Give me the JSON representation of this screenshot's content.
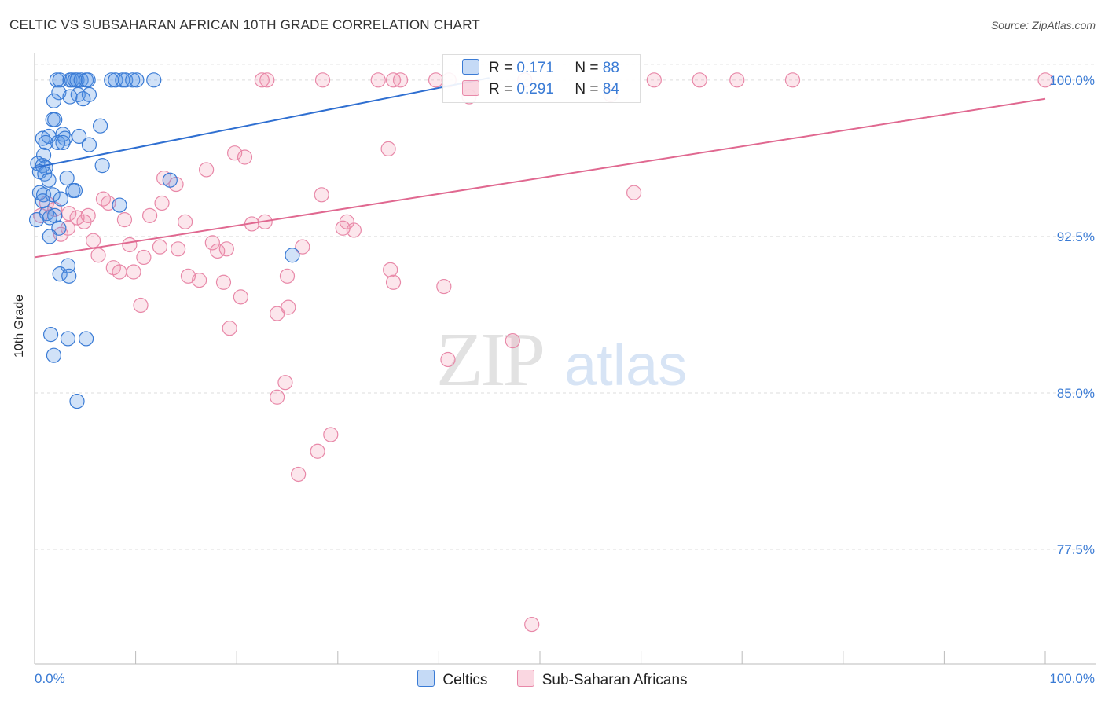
{
  "title": "CELTIC VS SUBSAHARAN AFRICAN 10TH GRADE CORRELATION CHART",
  "source": "Source: ZipAtlas.com",
  "watermark": {
    "zip": "ZIP",
    "atlas": "atlas"
  },
  "legend": {
    "r_label": "R = ",
    "n_label": "N = ",
    "series": [
      {
        "r": "0.171",
        "n": "88"
      },
      {
        "r": "0.291",
        "n": "84"
      }
    ]
  },
  "bottom_legend": [
    "Celtics",
    "Sub-Saharan Africans"
  ],
  "colors": {
    "blue_fill": "rgba(90,150,230,0.28)",
    "blue_stroke": "#3a7bd5",
    "blue_line": "#2f6fd1",
    "pink_fill": "rgba(240,140,170,0.22)",
    "pink_stroke": "#e888a8",
    "pink_line": "#e06890",
    "value_text": "#3a7bd5",
    "grid": "#dddddd"
  },
  "chart_data": {
    "type": "scatter",
    "xlabel": "",
    "ylabel": "10th Grade",
    "xlim": [
      0,
      100
    ],
    "ylim": [
      72,
      101.5
    ],
    "x_tick_labels": [
      "0.0%",
      "100.0%"
    ],
    "y_ticks": [
      77.5,
      85.0,
      92.5,
      100.0
    ],
    "y_tick_labels": [
      "77.5%",
      "85.0%",
      "92.5%",
      "100.0%"
    ],
    "grid": true,
    "legend_position": "top-center",
    "series": [
      {
        "name": "Celtics",
        "color": "#5a96e6",
        "trend": {
          "x": [
            0,
            45
          ],
          "y": [
            95.8,
            100.1
          ]
        },
        "points": [
          [
            2.2,
            100
          ],
          [
            2.5,
            100
          ],
          [
            3.5,
            100
          ],
          [
            3.7,
            100
          ],
          [
            4.0,
            100
          ],
          [
            4.2,
            100
          ],
          [
            4.6,
            100
          ],
          [
            5.1,
            100
          ],
          [
            5.3,
            100
          ],
          [
            7.6,
            100
          ],
          [
            8.0,
            100
          ],
          [
            8.7,
            100
          ],
          [
            9.0,
            100
          ],
          [
            9.7,
            100
          ],
          [
            10.1,
            100
          ],
          [
            11.8,
            100
          ],
          [
            4.3,
            99.3
          ],
          [
            2.4,
            99.4
          ],
          [
            5.4,
            99.3
          ],
          [
            3.5,
            99.2
          ],
          [
            1.9,
            99.0
          ],
          [
            4.8,
            99.1
          ],
          [
            1.8,
            98.1
          ],
          [
            2.0,
            98.1
          ],
          [
            6.5,
            97.8
          ],
          [
            2.8,
            97.4
          ],
          [
            3.0,
            97.2
          ],
          [
            4.4,
            97.3
          ],
          [
            0.8,
            97.2
          ],
          [
            1.4,
            97.3
          ],
          [
            2.3,
            97.0
          ],
          [
            1.1,
            97.0
          ],
          [
            2.8,
            97.0
          ],
          [
            5.4,
            96.9
          ],
          [
            0.9,
            96.4
          ],
          [
            0.3,
            96.0
          ],
          [
            0.8,
            95.9
          ],
          [
            1.1,
            95.8
          ],
          [
            0.5,
            95.6
          ],
          [
            1.0,
            95.5
          ],
          [
            6.7,
            95.9
          ],
          [
            3.2,
            95.3
          ],
          [
            1.4,
            95.2
          ],
          [
            0.5,
            94.6
          ],
          [
            0.9,
            94.5
          ],
          [
            1.8,
            94.5
          ],
          [
            3.8,
            94.7
          ],
          [
            4.0,
            94.7
          ],
          [
            13.4,
            95.2
          ],
          [
            0.8,
            94.2
          ],
          [
            2.6,
            94.3
          ],
          [
            8.4,
            94.0
          ],
          [
            1.2,
            93.6
          ],
          [
            2.0,
            93.5
          ],
          [
            1.5,
            93.4
          ],
          [
            2.4,
            92.9
          ],
          [
            1.5,
            92.5
          ],
          [
            25.5,
            91.6
          ],
          [
            3.3,
            91.1
          ],
          [
            2.5,
            90.7
          ],
          [
            3.4,
            90.6
          ],
          [
            1.6,
            87.8
          ],
          [
            3.3,
            87.6
          ],
          [
            5.1,
            87.6
          ],
          [
            1.9,
            86.8
          ],
          [
            4.2,
            84.6
          ],
          [
            0.2,
            93.3
          ]
        ]
      },
      {
        "name": "Sub-Saharan Africans",
        "color": "#f08cab",
        "trend": {
          "x": [
            0,
            100
          ],
          "y": [
            91.5,
            99.1
          ]
        },
        "points": [
          [
            22.5,
            100
          ],
          [
            23.0,
            100
          ],
          [
            28.5,
            100
          ],
          [
            34.0,
            100
          ],
          [
            35.5,
            100
          ],
          [
            36.2,
            100
          ],
          [
            39.7,
            100
          ],
          [
            41.0,
            100
          ],
          [
            48.5,
            100
          ],
          [
            61.3,
            100
          ],
          [
            65.8,
            100
          ],
          [
            69.5,
            100
          ],
          [
            75.0,
            100
          ],
          [
            100,
            100
          ],
          [
            43.0,
            99.2
          ],
          [
            57.0,
            99.3
          ],
          [
            35.0,
            96.7
          ],
          [
            19.8,
            96.5
          ],
          [
            20.8,
            96.3
          ],
          [
            17.0,
            95.7
          ],
          [
            12.8,
            95.3
          ],
          [
            14.0,
            95.0
          ],
          [
            28.4,
            94.5
          ],
          [
            59.3,
            94.6
          ],
          [
            6.8,
            94.3
          ],
          [
            7.3,
            94.1
          ],
          [
            12.6,
            94.1
          ],
          [
            1.2,
            94.1
          ],
          [
            2.0,
            93.8
          ],
          [
            3.4,
            93.6
          ],
          [
            5.3,
            93.5
          ],
          [
            11.4,
            93.5
          ],
          [
            4.2,
            93.4
          ],
          [
            0.6,
            93.5
          ],
          [
            8.9,
            93.3
          ],
          [
            14.9,
            93.2
          ],
          [
            21.5,
            93.1
          ],
          [
            22.8,
            93.2
          ],
          [
            26.5,
            92.0
          ],
          [
            30.9,
            93.2
          ],
          [
            30.5,
            92.9
          ],
          [
            31.6,
            92.8
          ],
          [
            3.3,
            92.9
          ],
          [
            2.6,
            92.6
          ],
          [
            4.9,
            93.2
          ],
          [
            5.8,
            92.3
          ],
          [
            9.4,
            92.1
          ],
          [
            12.4,
            92.0
          ],
          [
            14.2,
            91.9
          ],
          [
            17.6,
            92.2
          ],
          [
            18.1,
            91.8
          ],
          [
            19.0,
            91.9
          ],
          [
            6.3,
            91.6
          ],
          [
            10.8,
            91.5
          ],
          [
            7.8,
            91.0
          ],
          [
            8.4,
            90.8
          ],
          [
            9.8,
            90.8
          ],
          [
            15.2,
            90.6
          ],
          [
            16.3,
            90.4
          ],
          [
            18.7,
            90.3
          ],
          [
            25.0,
            90.6
          ],
          [
            35.2,
            90.9
          ],
          [
            35.5,
            90.3
          ],
          [
            40.5,
            90.1
          ],
          [
            20.4,
            89.6
          ],
          [
            10.5,
            89.2
          ],
          [
            25.1,
            89.1
          ],
          [
            24.0,
            88.8
          ],
          [
            19.3,
            88.1
          ],
          [
            47.3,
            87.5
          ],
          [
            40.9,
            86.6
          ],
          [
            24.8,
            85.5
          ],
          [
            24.0,
            84.8
          ],
          [
            29.3,
            83.0
          ],
          [
            28.0,
            82.2
          ],
          [
            26.1,
            81.1
          ],
          [
            49.2,
            73.9
          ]
        ]
      }
    ]
  }
}
